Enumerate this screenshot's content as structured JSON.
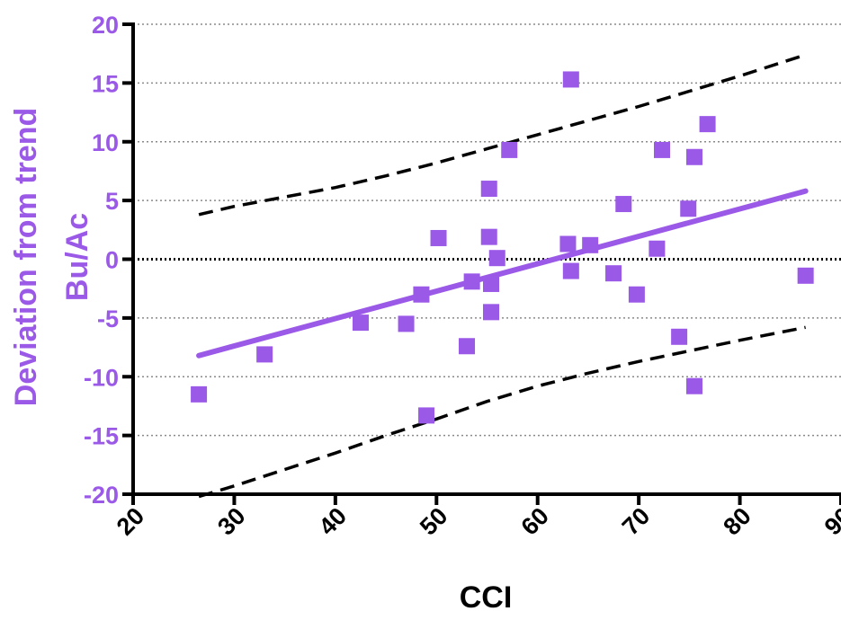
{
  "colors": {
    "accent": "#9B59E8",
    "points": "#9B59E8",
    "trend": "#9B59E8",
    "bands": "#000000",
    "axis": "#000000",
    "grid": "#8a8a8a"
  },
  "chart_data": {
    "type": "scatter",
    "xlabel": "CCI",
    "ylabel_lines": [
      "Deviation from trend",
      "Bu/Ac"
    ],
    "xlim": [
      20,
      90
    ],
    "ylim": [
      -20,
      20
    ],
    "xticks": [
      20,
      30,
      40,
      50,
      60,
      70,
      80,
      90
    ],
    "yticks": [
      20,
      15,
      10,
      5,
      0,
      -5,
      -10,
      -15,
      -20
    ],
    "ytick_labels": [
      "20",
      "15",
      "10",
      "5",
      "0",
      "-5",
      "-10",
      "-15",
      "-20"
    ],
    "xtick_labels": [
      "20",
      "30",
      "40",
      "50",
      "60",
      "70",
      "80",
      "90"
    ],
    "grid": "horizontal dotted",
    "zero_line": "heavy dotted",
    "points": [
      {
        "x": 26.5,
        "y": -11.5
      },
      {
        "x": 33.0,
        "y": -8.1
      },
      {
        "x": 42.5,
        "y": -5.4
      },
      {
        "x": 47.0,
        "y": -5.5
      },
      {
        "x": 48.5,
        "y": -3.0
      },
      {
        "x": 49.0,
        "y": -13.3
      },
      {
        "x": 50.2,
        "y": 1.8
      },
      {
        "x": 53.0,
        "y": -7.4
      },
      {
        "x": 53.5,
        "y": -1.9
      },
      {
        "x": 55.2,
        "y": 6.0
      },
      {
        "x": 55.2,
        "y": 1.9
      },
      {
        "x": 55.4,
        "y": -2.1
      },
      {
        "x": 55.4,
        "y": -4.5
      },
      {
        "x": 56.0,
        "y": 0.1
      },
      {
        "x": 57.2,
        "y": 9.3
      },
      {
        "x": 63.0,
        "y": 1.3
      },
      {
        "x": 63.3,
        "y": -1.0
      },
      {
        "x": 63.3,
        "y": 15.3
      },
      {
        "x": 65.2,
        "y": 1.2
      },
      {
        "x": 67.5,
        "y": -1.2
      },
      {
        "x": 68.5,
        "y": 4.7
      },
      {
        "x": 69.8,
        "y": -3.0
      },
      {
        "x": 71.8,
        "y": 0.9
      },
      {
        "x": 72.3,
        "y": 9.3
      },
      {
        "x": 74.0,
        "y": -6.6
      },
      {
        "x": 74.9,
        "y": 4.3
      },
      {
        "x": 75.5,
        "y": 8.7
      },
      {
        "x": 75.5,
        "y": -10.8
      },
      {
        "x": 76.8,
        "y": 11.5
      },
      {
        "x": 86.5,
        "y": -1.4
      }
    ],
    "trend_line": [
      {
        "x": 26.5,
        "y": -8.2
      },
      {
        "x": 86.5,
        "y": 5.8
      }
    ],
    "upper_band": [
      {
        "x": 26.5,
        "y": 3.8
      },
      {
        "x": 30,
        "y": 4.5
      },
      {
        "x": 35,
        "y": 5.3
      },
      {
        "x": 40,
        "y": 6.1
      },
      {
        "x": 45,
        "y": 7.1
      },
      {
        "x": 50,
        "y": 8.2
      },
      {
        "x": 55,
        "y": 9.4
      },
      {
        "x": 60,
        "y": 10.6
      },
      {
        "x": 65,
        "y": 11.8
      },
      {
        "x": 70,
        "y": 13.0
      },
      {
        "x": 75,
        "y": 14.3
      },
      {
        "x": 80,
        "y": 15.6
      },
      {
        "x": 86.5,
        "y": 17.4
      }
    ],
    "lower_band": [
      {
        "x": 26.5,
        "y": -20.2
      },
      {
        "x": 30,
        "y": -19.3
      },
      {
        "x": 35,
        "y": -17.9
      },
      {
        "x": 40,
        "y": -16.5
      },
      {
        "x": 45,
        "y": -15.0
      },
      {
        "x": 50,
        "y": -13.6
      },
      {
        "x": 55,
        "y": -12.1
      },
      {
        "x": 60,
        "y": -10.8
      },
      {
        "x": 65,
        "y": -9.7
      },
      {
        "x": 70,
        "y": -8.7
      },
      {
        "x": 75,
        "y": -7.8
      },
      {
        "x": 80,
        "y": -6.9
      },
      {
        "x": 86.5,
        "y": -5.8
      }
    ]
  }
}
